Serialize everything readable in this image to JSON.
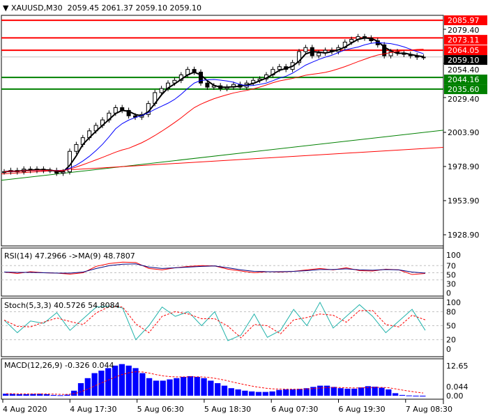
{
  "header": {
    "symbol": "XAUUSD,M30",
    "ohlc": "2059.45 2061.37 2059.10 2059.10"
  },
  "colors": {
    "up_bg": "#ff0000",
    "support_bg": "#008000",
    "current_bg": "#000000",
    "ma_fast": "#000000",
    "ma_mid": "#0000ff",
    "ma_slow": "#ff0000",
    "stoch_main": "#20b2aa",
    "hist": "#0000ff"
  },
  "chart_data": {
    "type": "candlestick",
    "price_ticks": [
      "2079.40",
      "2054.40",
      "2029.40",
      "2003.90",
      "1978.90",
      "1953.90",
      "1928.90"
    ],
    "price_tick_values": [
      2079.4,
      2054.4,
      2029.4,
      2003.9,
      1978.9,
      1953.9,
      1928.9
    ],
    "ylim": [
      1923,
      2090
    ],
    "resistance": [
      {
        "label": "2085.97",
        "value": 2085.97
      },
      {
        "label": "2073.11",
        "value": 2073.11
      },
      {
        "label": "2064.05",
        "value": 2064.05
      }
    ],
    "support": [
      {
        "label": "2044.16",
        "value": 2044.16
      },
      {
        "label": "2035.60",
        "value": 2035.6
      }
    ],
    "current": {
      "label": "2059.10",
      "value": 2059.1
    },
    "trendlines": [
      {
        "color": "#008000",
        "from": 1968.8,
        "to": 2005.5
      },
      {
        "color": "#ff0000",
        "from": 1973.5,
        "to": 1992.9
      }
    ],
    "closes": [
      1975,
      1976,
      1975,
      1977,
      1976,
      1977,
      1976,
      1976,
      1974,
      1975,
      1990,
      1995,
      2000,
      2005,
      2009,
      2013,
      2018,
      2022,
      2020,
      2016,
      2015,
      2017,
      2025,
      2033,
      2036,
      2040,
      2042,
      2046,
      2050,
      2048,
      2040,
      2037,
      2038,
      2036,
      2037,
      2039,
      2037,
      2040,
      2042,
      2043,
      2046,
      2050,
      2052,
      2050,
      2055,
      2063,
      2066,
      2060,
      2062,
      2064,
      2063,
      2066,
      2070,
      2072,
      2074,
      2073,
      2071,
      2068,
      2060,
      2063,
      2062,
      2061,
      2060,
      2059,
      2059
    ],
    "time_labels": [
      "4 Aug 2020",
      "4 Aug 17:30",
      "5 Aug 06:30",
      "5 Aug 18:30",
      "6 Aug 07:30",
      "6 Aug 19:30",
      "7 Aug 08:30"
    ],
    "rsi": {
      "label": "RSI(14) 47.2966  ->MA(9) 48.7807",
      "ticks": [
        "100",
        "70",
        "50",
        "30",
        "0"
      ],
      "values": [
        52,
        48,
        53,
        50,
        49,
        46,
        50,
        68,
        76,
        80,
        79,
        62,
        58,
        64,
        68,
        70,
        69,
        60,
        55,
        50,
        53,
        52,
        54,
        58,
        62,
        58,
        64,
        56,
        55,
        60,
        58,
        45,
        48
      ],
      "ma": [
        52,
        51,
        51,
        50,
        49,
        49,
        52,
        62,
        70,
        74,
        75,
        66,
        62,
        64,
        66,
        68,
        69,
        64,
        58,
        54,
        53,
        53,
        54,
        56,
        59,
        59,
        61,
        58,
        57,
        59,
        58,
        52,
        49
      ]
    },
    "stoch": {
      "label": "Stoch(5,3,3) 40.5726 54.8084",
      "ticks": [
        "100",
        "80",
        "50",
        "20",
        "0"
      ],
      "values": [
        62,
        35,
        60,
        55,
        78,
        40,
        65,
        90,
        92,
        88,
        20,
        50,
        90,
        70,
        80,
        50,
        80,
        18,
        30,
        75,
        25,
        40,
        85,
        50,
        100,
        45,
        70,
        95,
        70,
        35,
        60,
        85,
        40
      ]
    },
    "macd": {
      "label": "MACD(12,26,9) -0.326 0.044",
      "ticks": [
        "12.65",
        "0.044",
        "0.00"
      ],
      "hist": [
        0.8,
        0.7,
        0.6,
        0.6,
        0.7,
        0.8,
        0.6,
        0.3,
        0.2,
        0.4,
        2,
        5,
        7,
        9,
        10,
        11,
        12,
        12.6,
        12,
        11,
        9,
        7,
        6,
        6,
        6.5,
        7,
        7.5,
        7.8,
        7.5,
        7,
        6,
        5,
        4,
        3,
        2.5,
        2,
        1.7,
        1.5,
        1.5,
        1.7,
        2.3,
        2.5,
        2.5,
        2.7,
        3,
        3.5,
        4,
        4,
        3.5,
        3,
        2.8,
        2.8,
        3.3,
        3.8,
        3.6,
        3.2,
        2.5,
        1,
        0.3,
        0.1,
        -0.2,
        -0.3
      ]
    }
  }
}
